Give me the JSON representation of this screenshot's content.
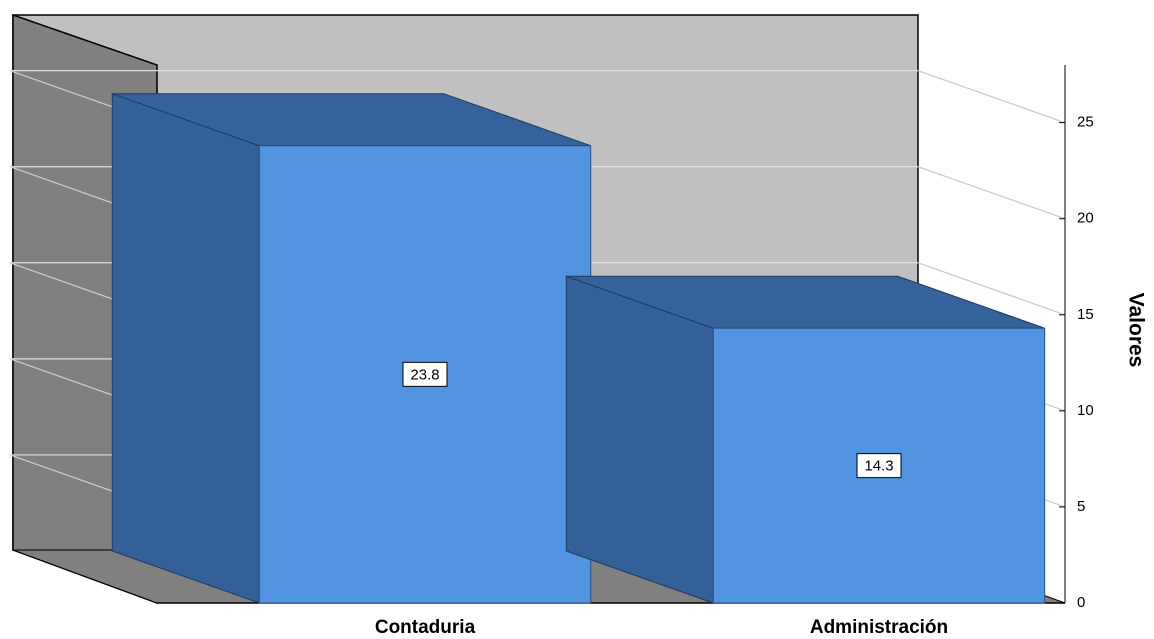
{
  "chart_data": {
    "type": "bar3d",
    "y_label": "Valores",
    "categories": [
      "Contaduria",
      "Administración"
    ],
    "values": [
      23.8,
      14.3
    ],
    "color": "#5294e2",
    "ylim": [
      0,
      28
    ],
    "yticks": [
      0,
      5,
      10,
      15,
      20,
      25
    ],
    "grid": true
  }
}
